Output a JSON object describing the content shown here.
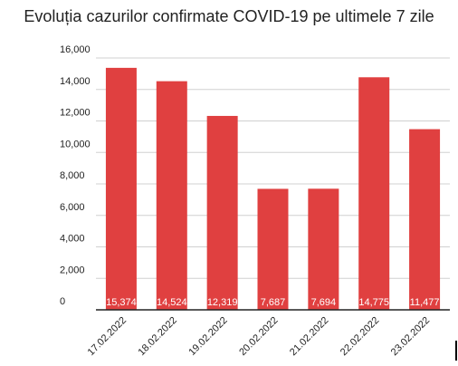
{
  "chart_data": {
    "type": "bar",
    "title": "Evoluția cazurilor confirmate COVID-19 pe ultimele 7 zile",
    "categories": [
      "17.02.2022",
      "18.02.2022",
      "19.02.2022",
      "20.02.2022",
      "21.02.2022",
      "22.02.2022",
      "23.02.2022"
    ],
    "values": [
      15374,
      14524,
      12319,
      7687,
      7694,
      14775,
      11477
    ],
    "data_labels": [
      "15,374",
      "14,524",
      "12,319",
      "7,687",
      "7,694",
      "14,775",
      "11,477"
    ],
    "ylim": [
      0,
      16000
    ],
    "yticks": [
      "0",
      "2,000",
      "4,000",
      "6,000",
      "8,000",
      "10,000",
      "12,000",
      "14,000",
      "16,000"
    ],
    "grid": true,
    "bar_color": "#e04040",
    "grid_color": "#d0d0d0",
    "axis_color": "#222222"
  }
}
